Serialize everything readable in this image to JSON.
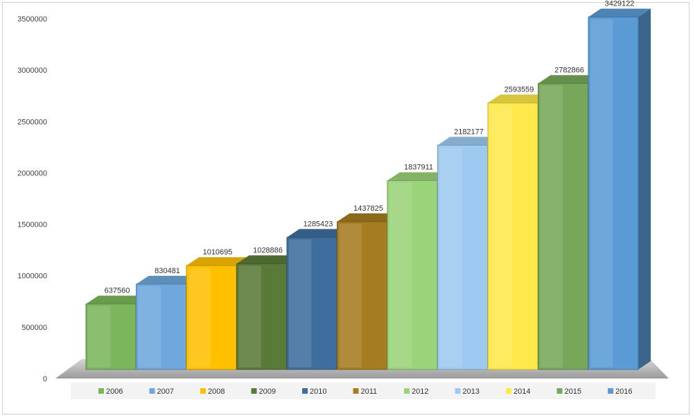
{
  "chart_data": {
    "type": "bar",
    "style": "3d-column",
    "categories": [
      "2006",
      "2007",
      "2008",
      "2009",
      "2010",
      "2011",
      "2012",
      "2013",
      "2014",
      "2015",
      "2016"
    ],
    "values": [
      637560,
      830481,
      1010695,
      1028886,
      1285423,
      1437825,
      1837911,
      2182177,
      2593559,
      2782866,
      3429122
    ],
    "data_labels": [
      "637560",
      "830481",
      "1010695",
      "1028886",
      "1285423",
      "1437825",
      "1837911",
      "2182177",
      "2593559",
      "2782866",
      "3429122"
    ],
    "colors": [
      "#7cb65c",
      "#6fa8dc",
      "#ffc000",
      "#5a7a3a",
      "#3e6e9e",
      "#a67c20",
      "#9bd37a",
      "#9ec9f0",
      "#ffe94a",
      "#77a85a",
      "#5b9bd5"
    ],
    "y_ticks": [
      "0",
      "500000",
      "1000000",
      "1500000",
      "2000000",
      "2500000",
      "3000000",
      "3500000"
    ],
    "ylim": [
      0,
      3500000
    ],
    "grid": false,
    "legend": "bottom",
    "title": "",
    "xlabel": "",
    "ylabel": ""
  }
}
